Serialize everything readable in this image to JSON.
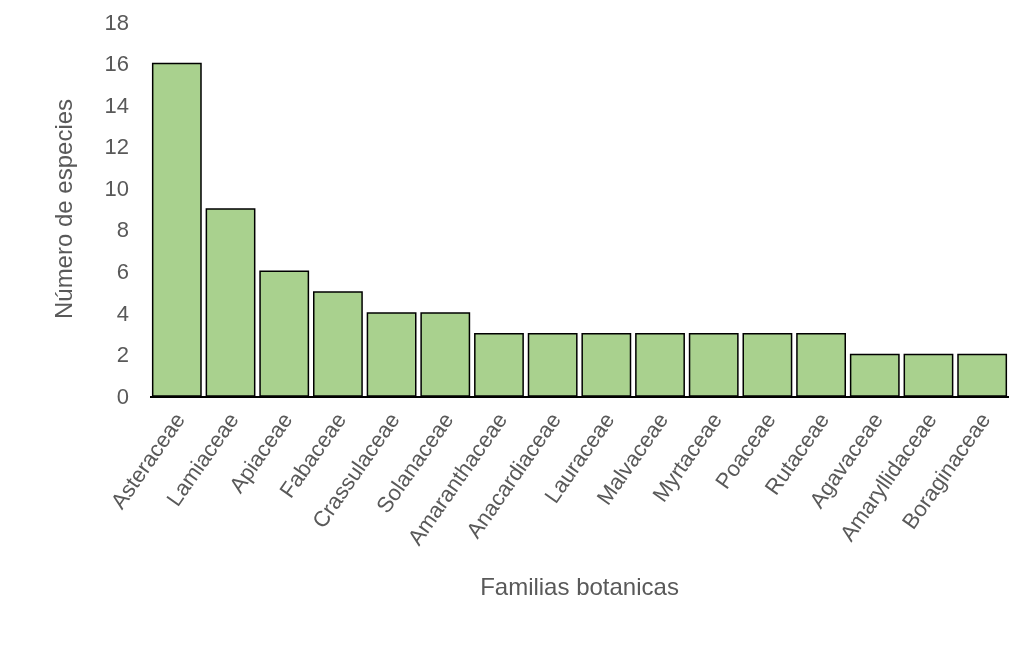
{
  "chart_data": {
    "type": "bar",
    "xlabel": "Familias botanicas",
    "ylabel": "Número de especies",
    "categories": [
      "Asteraceae",
      "Lamiaceae",
      "Apiaceae",
      "Fabaceae",
      "Crassulaceae",
      "Solanaceae",
      "Amaranthaceae",
      "Anacardiaceae",
      "Lauraceae",
      "Malvaceae",
      "Myrtaceae",
      "Poaceae",
      "Rutaceae",
      "Agavaceae",
      "Amaryllidaceae",
      "Boraginaceae"
    ],
    "values": [
      16,
      9,
      6,
      5,
      4,
      4,
      3,
      3,
      3,
      3,
      3,
      3,
      3,
      2,
      2,
      2
    ],
    "color": "#a9d18e",
    "ylim": [
      0,
      18
    ],
    "yticks": [
      0,
      2,
      4,
      6,
      8,
      10,
      12,
      14,
      16,
      18
    ],
    "grid": false
  }
}
